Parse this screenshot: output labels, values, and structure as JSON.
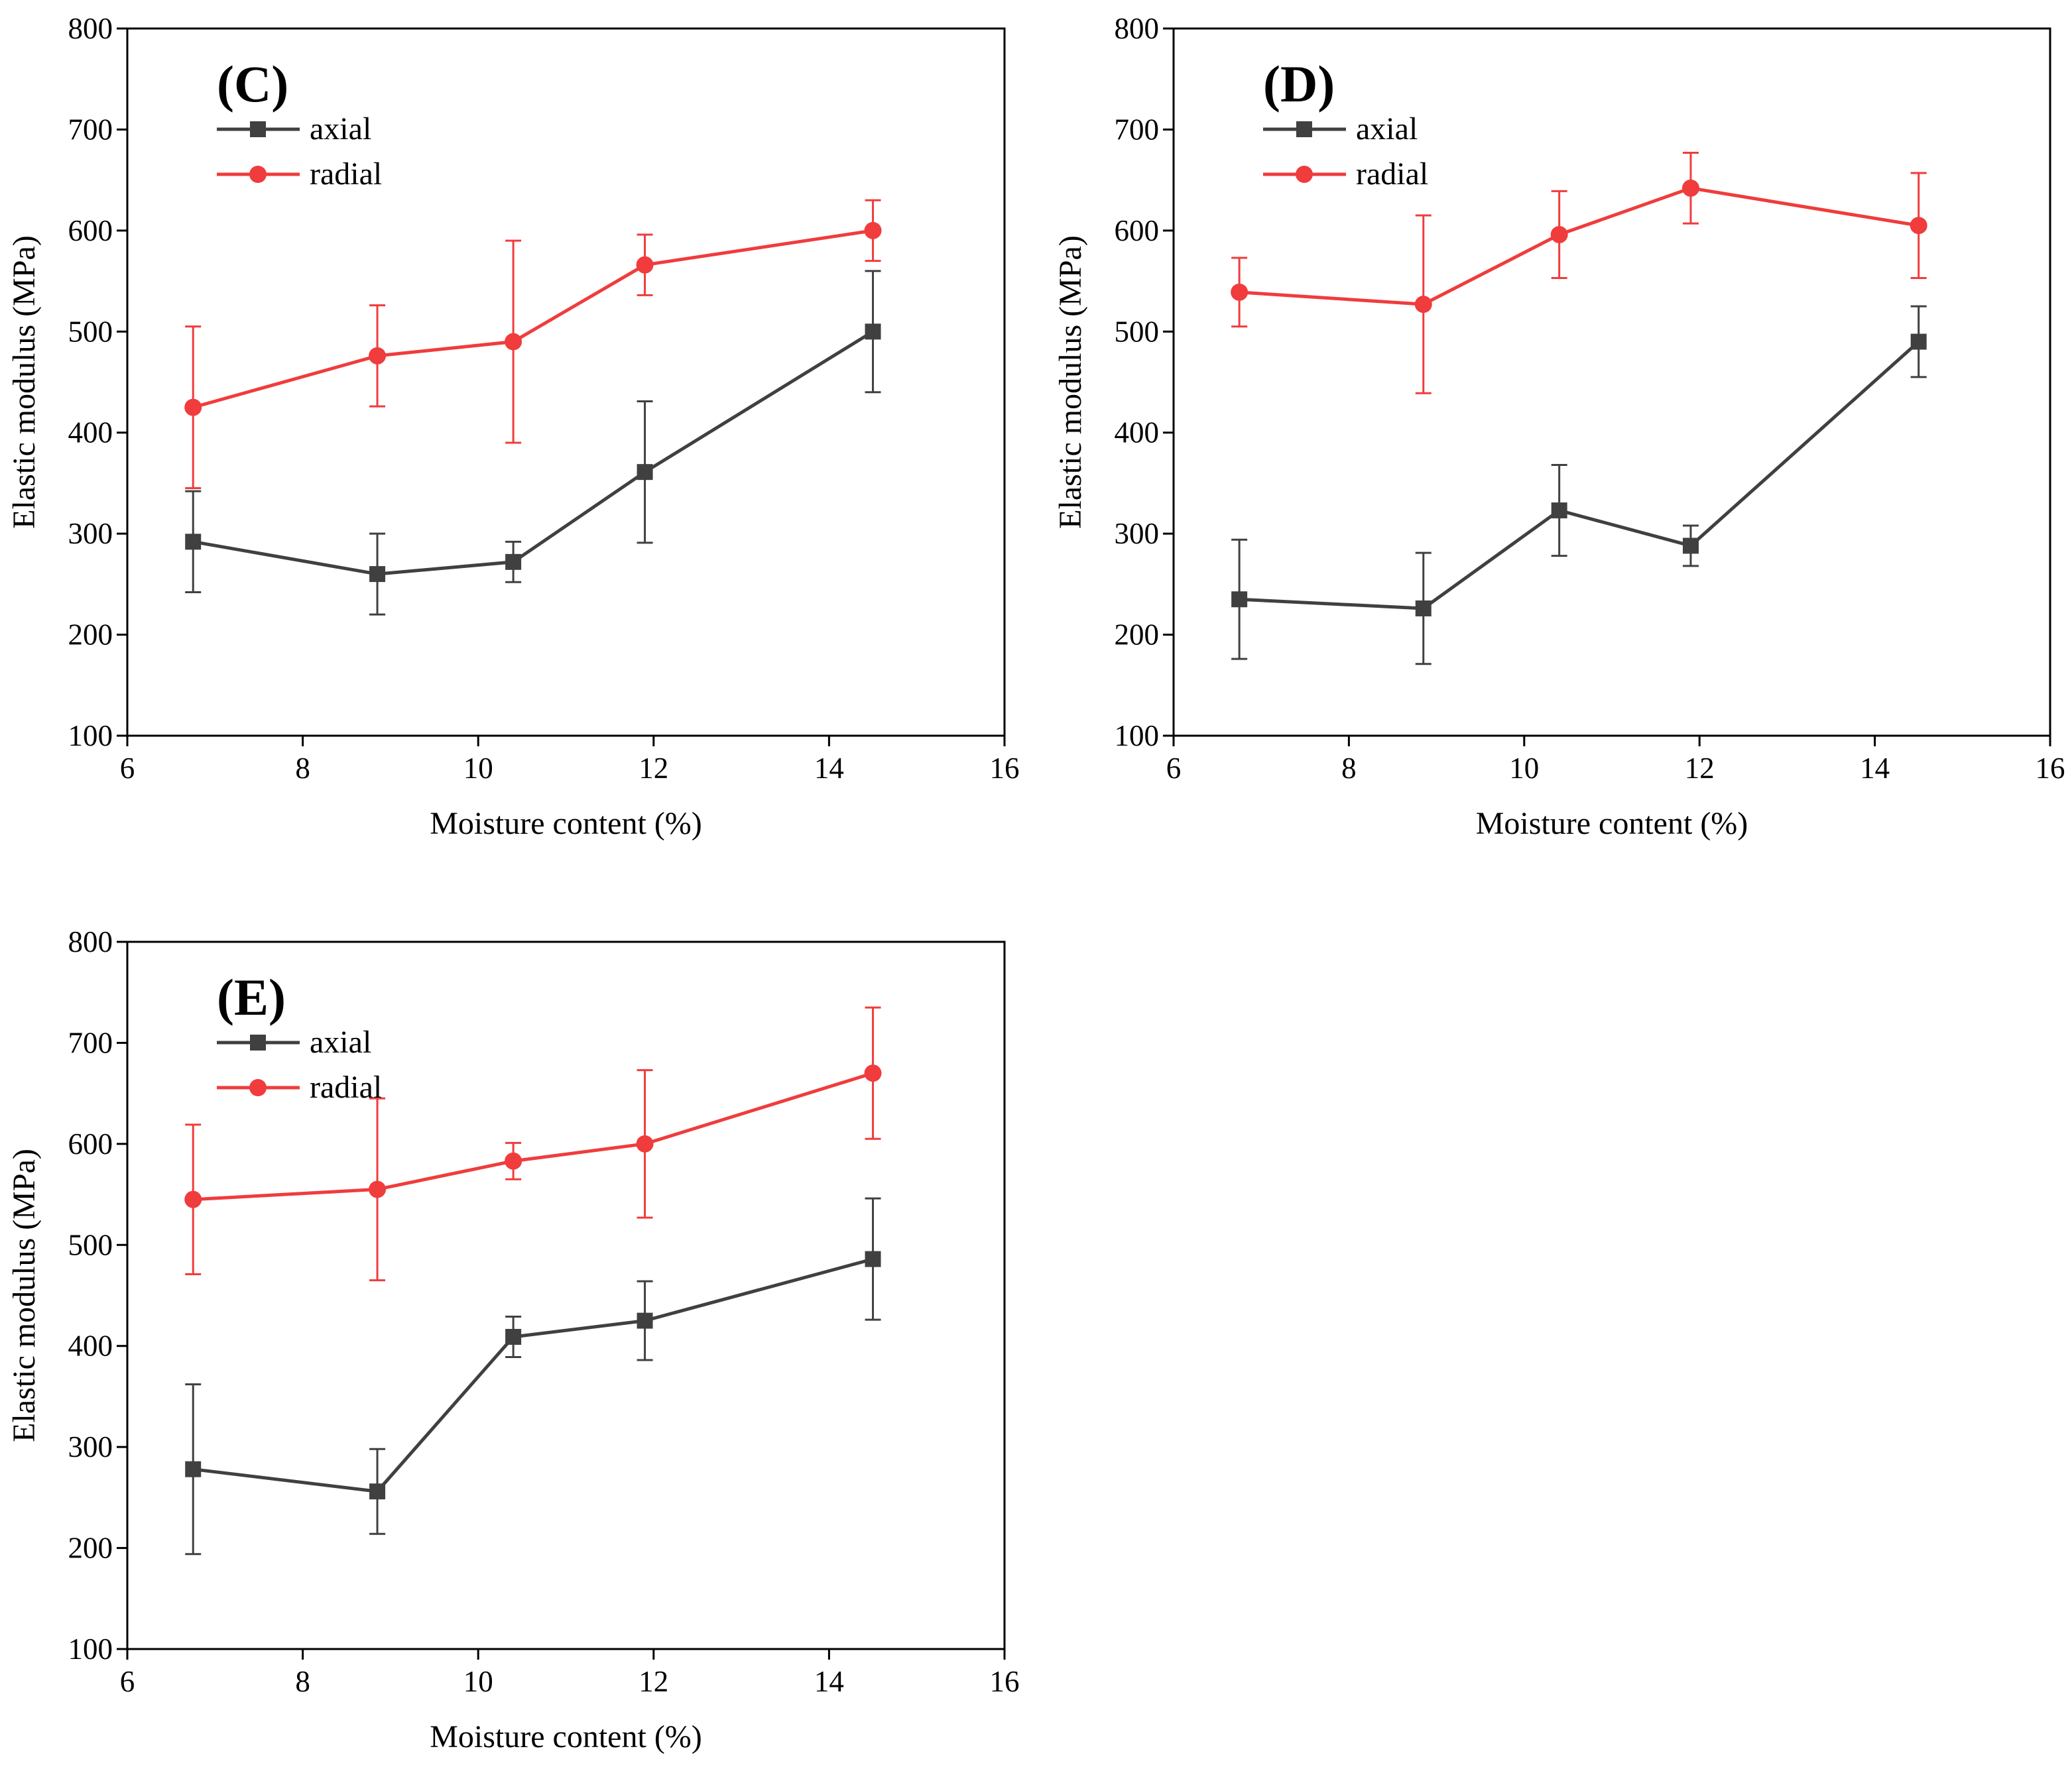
{
  "chart_data": [
    {
      "panel": "(C)",
      "type": "line",
      "xlabel": "Moisture content (%)",
      "ylabel": "Elastic modulus (MPa)",
      "xlim": [
        6,
        16
      ],
      "ylim": [
        100,
        800
      ],
      "xticks": [
        6,
        8,
        10,
        12,
        14,
        16
      ],
      "yticks": [
        100,
        200,
        300,
        400,
        500,
        600,
        700,
        800
      ],
      "legend_position": "top-left",
      "grid": false,
      "series": [
        {
          "name": "axial",
          "color": "#404040",
          "marker": "square",
          "x": [
            6.75,
            8.85,
            10.4,
            11.9,
            14.5
          ],
          "y": [
            292,
            260,
            272,
            361,
            500
          ],
          "error": [
            50,
            40,
            20,
            70,
            60
          ]
        },
        {
          "name": "radial",
          "color": "#f03c3c",
          "marker": "circle",
          "x": [
            6.75,
            8.85,
            10.4,
            11.9,
            14.5
          ],
          "y": [
            425,
            476,
            490,
            566,
            600
          ],
          "error": [
            80,
            50,
            100,
            30,
            30
          ]
        }
      ]
    },
    {
      "panel": "(D)",
      "type": "line",
      "xlabel": "Moisture content (%)",
      "ylabel": "Elastic modulus (MPa)",
      "xlim": [
        6,
        16
      ],
      "ylim": [
        100,
        800
      ],
      "xticks": [
        6,
        8,
        10,
        12,
        14,
        16
      ],
      "yticks": [
        100,
        200,
        300,
        400,
        500,
        600,
        700,
        800
      ],
      "legend_position": "top-left",
      "grid": false,
      "series": [
        {
          "name": "axial",
          "color": "#404040",
          "marker": "square",
          "x": [
            6.75,
            8.85,
            10.4,
            11.9,
            14.5
          ],
          "y": [
            235,
            226,
            323,
            288,
            490
          ],
          "error": [
            59,
            55,
            45,
            20,
            35
          ]
        },
        {
          "name": "radial",
          "color": "#f03c3c",
          "marker": "circle",
          "x": [
            6.75,
            8.85,
            10.4,
            11.9,
            14.5
          ],
          "y": [
            539,
            527,
            596,
            642,
            605
          ],
          "error": [
            34,
            88,
            43,
            35,
            52
          ]
        }
      ]
    },
    {
      "panel": "(E)",
      "type": "line",
      "xlabel": "Moisture content (%)",
      "ylabel": "Elastic modulus (MPa)",
      "xlim": [
        6,
        16
      ],
      "ylim": [
        100,
        800
      ],
      "xticks": [
        6,
        8,
        10,
        12,
        14,
        16
      ],
      "yticks": [
        100,
        200,
        300,
        400,
        500,
        600,
        700,
        800
      ],
      "legend_position": "top-left",
      "grid": false,
      "series": [
        {
          "name": "axial",
          "color": "#404040",
          "marker": "square",
          "x": [
            6.75,
            8.85,
            10.4,
            11.9,
            14.5
          ],
          "y": [
            278,
            256,
            409,
            425,
            486
          ],
          "error": [
            84,
            42,
            20,
            39,
            60
          ]
        },
        {
          "name": "radial",
          "color": "#f03c3c",
          "marker": "circle",
          "x": [
            6.75,
            8.85,
            10.4,
            11.9,
            14.5
          ],
          "y": [
            545,
            555,
            583,
            600,
            670
          ],
          "error": [
            74,
            90,
            18,
            73,
            65
          ]
        }
      ]
    }
  ]
}
